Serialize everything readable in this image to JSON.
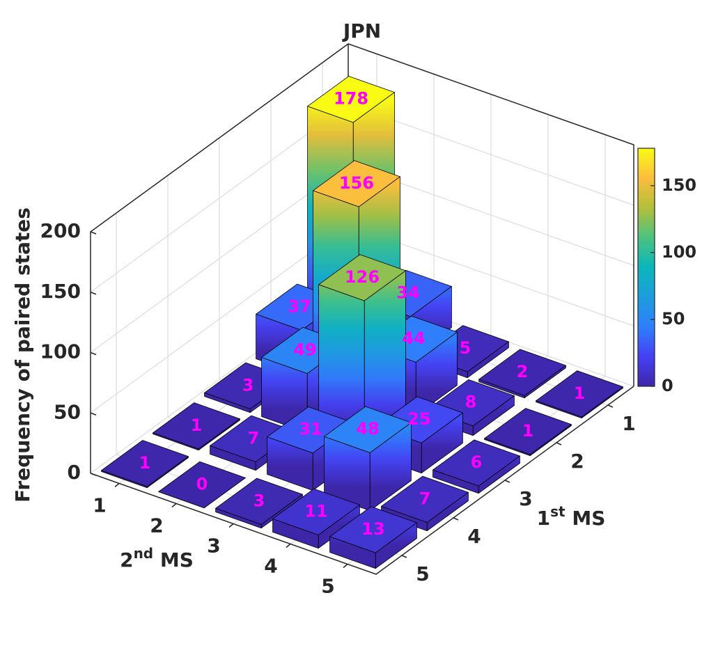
{
  "chart_data": {
    "type": "bar3",
    "title": "JPN",
    "xlabel": "2nd MS",
    "ylabel": "1st MS",
    "zlabel": "Frequency of paired states",
    "x": [
      1,
      2,
      3,
      4,
      5
    ],
    "y": [
      1,
      2,
      3,
      4,
      5
    ],
    "values": [
      [
        178,
        34,
        5,
        2,
        1
      ],
      [
        37,
        156,
        44,
        8,
        1
      ],
      [
        3,
        49,
        126,
        25,
        6
      ],
      [
        1,
        7,
        31,
        48,
        7
      ],
      [
        1,
        0,
        3,
        11,
        13
      ]
    ],
    "zlim": [
      0,
      200
    ],
    "zticks": [
      0,
      50,
      100,
      150,
      200
    ],
    "grid": true,
    "colormap": "parula",
    "label_color": "#ff00ff",
    "colorbar": {
      "clim": [
        0,
        178
      ],
      "ticks": [
        0,
        50,
        100,
        150
      ]
    }
  }
}
